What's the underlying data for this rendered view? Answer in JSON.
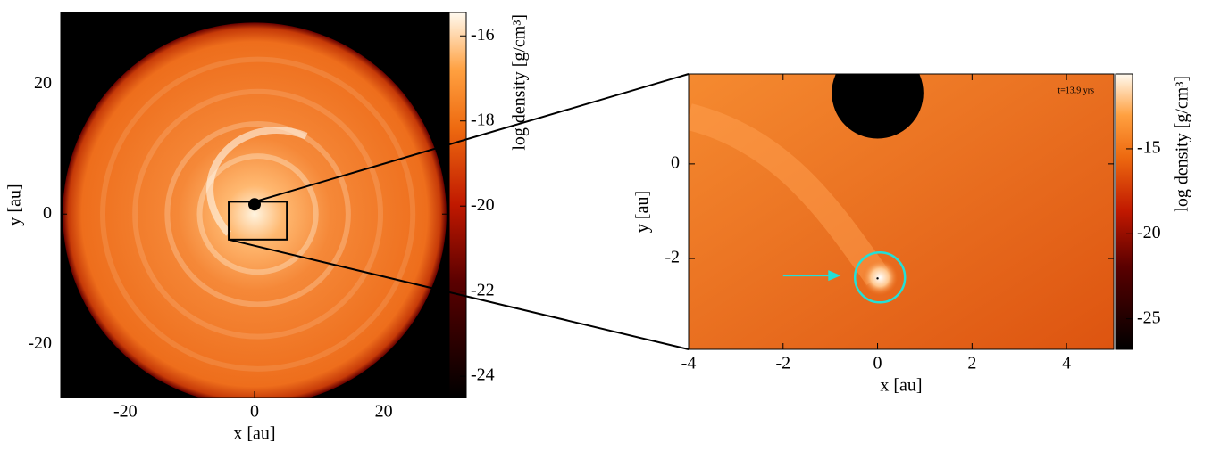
{
  "chart_data": [
    {
      "type": "heatmap",
      "xlabel": "x [au]",
      "ylabel": "y [au]",
      "xlim": [
        -30,
        30
      ],
      "ylim": [
        -28.2,
        31
      ],
      "xticks": [
        -20,
        0,
        20
      ],
      "yticks": [
        -20,
        0,
        20
      ],
      "colorbar_label": "log density [g/cm³]",
      "clim": [
        -24.5,
        -15.45
      ],
      "cticks": [
        -24,
        -22,
        -20,
        -18,
        -16
      ]
    },
    {
      "type": "heatmap",
      "xlabel": "x [au]",
      "ylabel": "y [au]",
      "xlim": [
        -4,
        5
      ],
      "ylim": [
        -3.92,
        1.9
      ],
      "xticks": [
        -4,
        -2,
        0,
        2,
        4
      ],
      "yticks": [
        -2,
        0
      ],
      "colorbar_label": "log density [g/cm³]",
      "clim": [
        -26.8,
        -10.6
      ],
      "cticks": [
        -25,
        -20,
        -15
      ],
      "annotation": "t=13.9 yrs"
    }
  ]
}
